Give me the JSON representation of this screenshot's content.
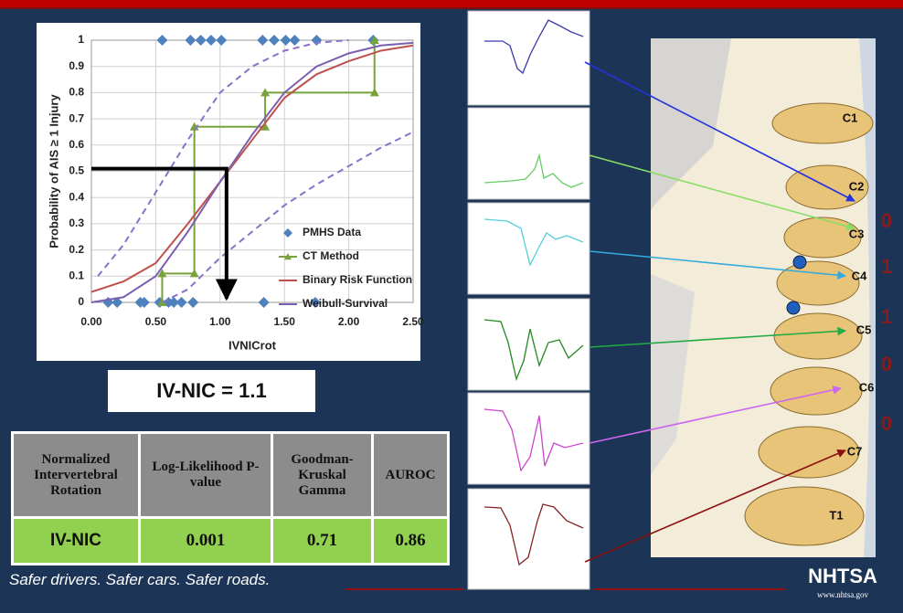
{
  "chart_data": {
    "type": "line",
    "x_label": "IVNICrot",
    "y_label": "Probability of AIS ≥ 1 Injury",
    "xlim": [
      0,
      2.5
    ],
    "ylim": [
      0,
      1
    ],
    "xticks": [
      {
        "value": 0,
        "label": "0.00"
      },
      {
        "value": 0.5,
        "label": "0.50"
      },
      {
        "value": 1,
        "label": "1.00"
      },
      {
        "value": 1.5,
        "label": "1.50"
      },
      {
        "value": 2,
        "label": "2.00"
      },
      {
        "value": 2.5,
        "label": "2.50"
      }
    ],
    "yticks": [
      0,
      0.1,
      0.2,
      0.3,
      0.4,
      0.5,
      0.6,
      0.7,
      0.8,
      0.9,
      1
    ],
    "grid": true,
    "legend": "lower right",
    "series": [
      {
        "name": "PMHS Data",
        "type": "scatter",
        "color": "#4f81bd",
        "x": [
          0.55,
          0.77,
          0.85,
          0.93,
          1.01,
          1.33,
          1.42,
          1.51,
          1.58,
          1.75,
          2.19,
          0.13,
          0.2,
          0.38,
          0.41,
          0.53,
          0.6,
          0.64,
          0.7,
          0.79,
          1.34,
          1.74
        ],
        "values": [
          1,
          1,
          1,
          1,
          1,
          1,
          1,
          1,
          1,
          1,
          1,
          0,
          0,
          0,
          0,
          0,
          0,
          0,
          0,
          0,
          0,
          0
        ]
      },
      {
        "name": "CT Method",
        "type": "step",
        "color": "#77a33a",
        "x": [
          0.55,
          0.55,
          0.8,
          0.8,
          1.35,
          1.35,
          2.2,
          2.2
        ],
        "values": [
          0,
          0.11,
          0.11,
          0.67,
          0.67,
          0.8,
          0.8,
          1
        ]
      },
      {
        "name": "Binary Risk Function",
        "type": "line",
        "color": "#c0504d",
        "x": [
          0,
          0.25,
          0.5,
          0.75,
          1,
          1.25,
          1.5,
          1.75,
          2,
          2.25,
          2.5
        ],
        "values": [
          0.04,
          0.08,
          0.15,
          0.3,
          0.46,
          0.62,
          0.78,
          0.87,
          0.92,
          0.96,
          0.98
        ]
      },
      {
        "name": "Weibull-Survival",
        "type": "line",
        "color": "#7a5fb0",
        "x": [
          0,
          0.25,
          0.5,
          0.75,
          1,
          1.25,
          1.5,
          1.75,
          2,
          2.25,
          2.5
        ],
        "values": [
          0,
          0.02,
          0.1,
          0.27,
          0.46,
          0.64,
          0.8,
          0.9,
          0.95,
          0.98,
          0.99
        ]
      },
      {
        "type": "line",
        "style": "dashed",
        "color": "#8a72c8",
        "x": [
          0.05,
          0.25,
          0.5,
          0.75,
          1,
          1.25,
          1.5,
          1.75,
          2
        ],
        "values": [
          0.1,
          0.22,
          0.42,
          0.62,
          0.8,
          0.9,
          0.96,
          0.99,
          1
        ]
      },
      {
        "type": "line",
        "style": "dashed",
        "color": "#8a72c8",
        "x": [
          0.55,
          0.75,
          1,
          1.25,
          1.5,
          1.75,
          2,
          2.25,
          2.5
        ],
        "values": [
          0,
          0.05,
          0.17,
          0.27,
          0.37,
          0.45,
          0.52,
          0.59,
          0.65
        ]
      }
    ],
    "marker": {
      "x": 1.05,
      "y": 0.51
    }
  },
  "result": "IV-NIC = 1.1",
  "table": {
    "header": [
      "Normalized Intervertebral Rotation",
      "Log-Likelihood P-value",
      "Goodman-Kruskal Gamma",
      "AUROC"
    ],
    "rows": [
      [
        "IV-NIC",
        "0.001",
        "0.71",
        "0.86"
      ]
    ]
  },
  "spine": {
    "levels": [
      "C1",
      "C2",
      "C3",
      "C4",
      "C5",
      "C6",
      "C7",
      "T1"
    ],
    "scores": [
      "0",
      "1",
      "1",
      "0",
      "0"
    ]
  },
  "footer": "Safer drivers. Safer cars. Safer roads.",
  "logo": {
    "name": "NHTSA",
    "url": "www.nhtsa.gov"
  }
}
